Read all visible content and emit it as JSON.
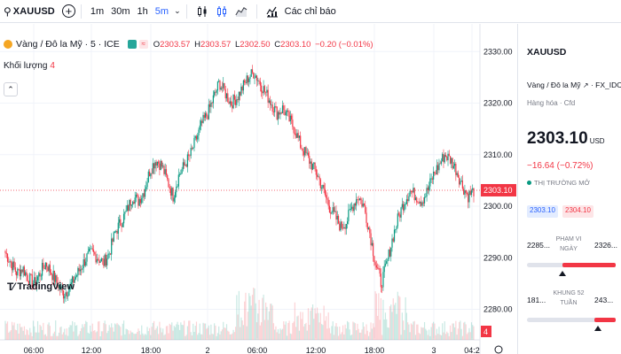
{
  "toolbar": {
    "symbol": "XAUUSD",
    "timeframes": [
      {
        "label": "1m",
        "active": false
      },
      {
        "label": "30m",
        "active": false
      },
      {
        "label": "1h",
        "active": false
      },
      {
        "label": "5m",
        "active": true
      }
    ],
    "indicators_label": "Các chỉ báo"
  },
  "legend": {
    "title": "Vàng / Đô la Mỹ · 5 · ICE",
    "ohlc": [
      {
        "k": "O",
        "v": "2303.57"
      },
      {
        "k": "H",
        "v": "2303.57"
      },
      {
        "k": "L",
        "v": "2302.50"
      },
      {
        "k": "C",
        "v": "2303.10"
      }
    ],
    "change": "−0.20 (−0.01%)",
    "volume_label": "Khối lượng",
    "volume_value": "4"
  },
  "price_axis": {
    "ticks": [
      "2330.00",
      "2320.00",
      "2310.00",
      "2300.00",
      "2290.00",
      "2280.00"
    ],
    "current_price": "2303.10",
    "current_volume": "4"
  },
  "time_axis": {
    "ticks": [
      "06:00",
      "12:00",
      "18:00",
      "2",
      "06:00",
      "12:00",
      "18:00",
      "3",
      "04:2"
    ]
  },
  "panel": {
    "symbol": "XAUUSD",
    "name": "Vàng / Đô la Mỹ",
    "exchange": "· FX_IDC",
    "type": "Hàng hóa · Cfd",
    "price": "2303.10",
    "currency": "USD",
    "change": "−16.64 (−0.72%)",
    "status": "THỊ TRƯỜNG MỞ",
    "bid": "2303.10",
    "ask": "2304.10",
    "day_range": {
      "low": "2285...",
      "high": "2326...",
      "label": "PHẠM VI NGÀY",
      "marker": 0.4,
      "fill_from": 0.4
    },
    "year_range": {
      "low": "181...",
      "high": "243...",
      "label": "KHUNG 52 TUẦN",
      "marker": 0.8,
      "fill_from": 0.76
    }
  },
  "brand": "TradingView",
  "colors": {
    "up": "#089981",
    "down": "#f23645",
    "accent": "#2962ff"
  },
  "chart_data": {
    "type": "candlestick",
    "price_range": [
      2277,
      2334
    ],
    "close_path": [
      2291,
      2289,
      2287,
      2288,
      2286,
      2285,
      2287,
      2289,
      2287,
      2285,
      2283,
      2284,
      2286,
      2288,
      2290,
      2291,
      2290,
      2289,
      2291,
      2295,
      2297,
      2299,
      2302,
      2301,
      2303,
      2307,
      2309,
      2308,
      2305,
      2302,
      2306,
      2308,
      2310,
      2313,
      2316,
      2318,
      2321,
      2324,
      2322,
      2320,
      2321,
      2323,
      2325,
      2326,
      2324,
      2322,
      2320,
      2318,
      2319,
      2317,
      2315,
      2312,
      2310,
      2308,
      2306,
      2303,
      2300,
      2298,
      2296,
      2297,
      2300,
      2302,
      2300,
      2295,
      2289,
      2285,
      2289,
      2294,
      2298,
      2301,
      2303,
      2302,
      2301,
      2303,
      2306,
      2308,
      2310,
      2309,
      2307,
      2304,
      2302,
      2303
    ]
  }
}
